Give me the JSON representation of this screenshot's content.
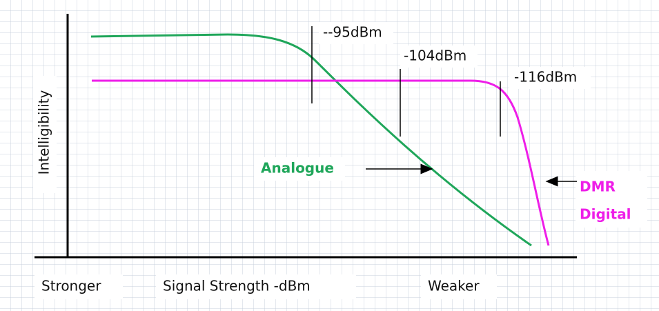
{
  "y_axis_label": "Intelligibility",
  "markers": [
    "--95dBm",
    "-104dBm",
    "-116dBm"
  ],
  "curves": {
    "analogue": "Analogue",
    "digital": [
      "DMR",
      "Digital"
    ]
  },
  "x_axis": {
    "left": "Stronger",
    "center": "Signal Strength -dBm",
    "right": "Weaker"
  }
}
